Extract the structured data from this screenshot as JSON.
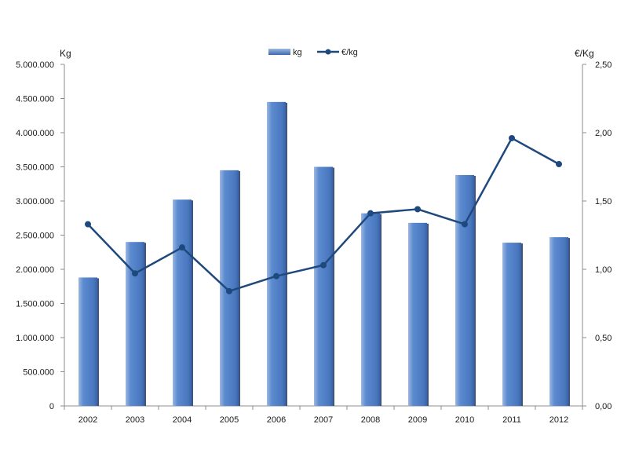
{
  "chart_data": {
    "type": "bar",
    "title": "",
    "categories": [
      "2002",
      "2003",
      "2004",
      "2005",
      "2006",
      "2007",
      "2008",
      "2009",
      "2010",
      "2011",
      "2012"
    ],
    "series": [
      {
        "name": "kg",
        "type": "bar",
        "axis": "left",
        "values": [
          1880000,
          2400000,
          3020000,
          3450000,
          4450000,
          3500000,
          2820000,
          2680000,
          3380000,
          2390000,
          2470000
        ],
        "color": "#4f81bd"
      },
      {
        "name": "€/kg",
        "type": "line",
        "axis": "right",
        "values": [
          1.33,
          0.97,
          1.16,
          0.84,
          0.95,
          1.03,
          1.41,
          1.44,
          1.33,
          1.96,
          1.77
        ],
        "color": "#1f497d"
      }
    ],
    "y_left": {
      "label": "Kg",
      "min": 0,
      "max": 5000000,
      "ticks": [
        "0",
        "500.000",
        "1.000.000",
        "1.500.000",
        "2.000.000",
        "2.500.000",
        "3.000.000",
        "3.500.000",
        "4.000.000",
        "4.500.000",
        "5.000.000"
      ]
    },
    "y_right": {
      "label": "€/Kg",
      "min": 0,
      "max": 2.5,
      "ticks": [
        "0,00",
        "0,50",
        "1,00",
        "1,50",
        "2,00",
        "2,50"
      ]
    },
    "legend": {
      "position": "top-center",
      "items": [
        "kg",
        "€/kg"
      ]
    },
    "grid": false
  }
}
